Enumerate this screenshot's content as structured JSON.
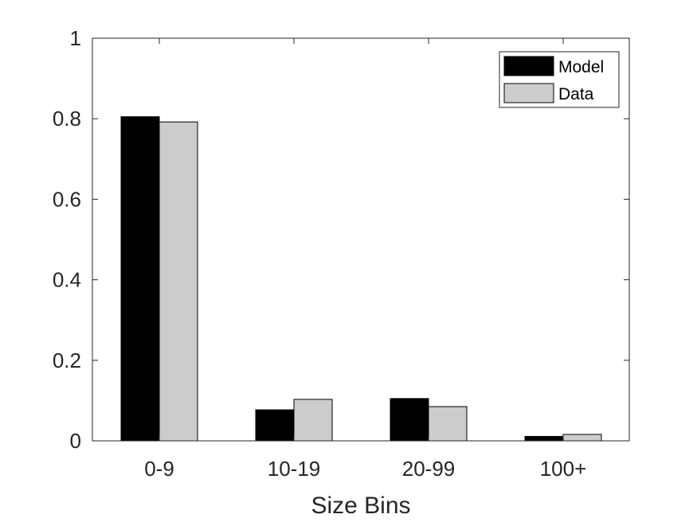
{
  "chart_data": {
    "type": "bar",
    "title": "",
    "xlabel": "Size Bins",
    "ylabel": "",
    "categories": [
      "0-9",
      "10-19",
      "20-99",
      "100+"
    ],
    "series": [
      {
        "name": "Model",
        "color": "#000000",
        "values": [
          0.805,
          0.077,
          0.105,
          0.011
        ]
      },
      {
        "name": "Data",
        "color": "#cccccc",
        "values": [
          0.792,
          0.103,
          0.085,
          0.016
        ]
      }
    ],
    "ylim": [
      0,
      1
    ],
    "yticks": [
      0,
      0.2,
      0.4,
      0.6,
      0.8,
      1
    ],
    "ytick_labels": [
      "0",
      "0.2",
      "0.4",
      "0.6",
      "0.8",
      "1"
    ],
    "grid": false,
    "legend": {
      "position": "top-right",
      "entries": [
        "Model",
        "Data"
      ]
    },
    "bar_edge_color": "#000000"
  }
}
